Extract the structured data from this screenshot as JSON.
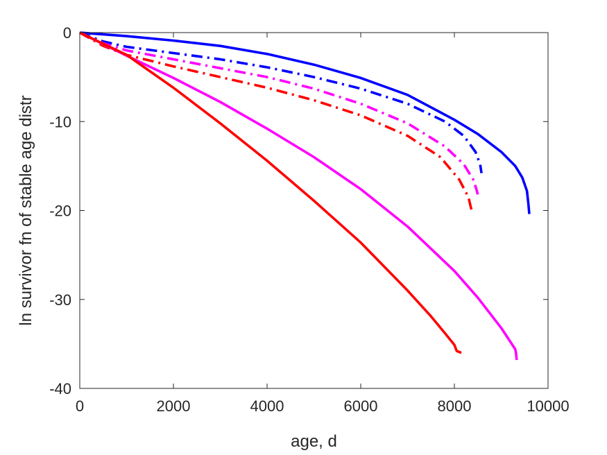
{
  "chart_data": {
    "type": "line",
    "title": "",
    "xlabel": "age, d",
    "ylabel": "ln survivor fn of stable age distr",
    "xlim": [
      0,
      10000
    ],
    "ylim": [
      -40,
      0
    ],
    "xticks": [
      0,
      2000,
      4000,
      6000,
      8000,
      10000
    ],
    "xtick_labels": [
      "0",
      "2000",
      "4000",
      "6000",
      "8000",
      "10000"
    ],
    "yticks": [
      0,
      -10,
      -20,
      -30,
      -40
    ],
    "ytick_labels": [
      "0",
      "-10",
      "-20",
      "-30",
      "-40"
    ],
    "grid": false,
    "legend": "none",
    "series": [
      {
        "color": "#0000ff",
        "style": "solid",
        "x": [
          0,
          1000,
          2000,
          3000,
          4000,
          5000,
          6000,
          7000,
          8000,
          8500,
          9000,
          9300,
          9450,
          9550,
          9580,
          9600
        ],
        "y": [
          0,
          -0.4,
          -0.9,
          -1.5,
          -2.4,
          -3.6,
          -5.1,
          -7.0,
          -9.8,
          -11.4,
          -13.4,
          -15.0,
          -16.3,
          -17.8,
          -19.2,
          -20.4
        ]
      },
      {
        "color": "#0000ff",
        "style": "dashdot",
        "x": [
          0,
          500,
          1000,
          2000,
          3000,
          4000,
          5000,
          6000,
          7000,
          7800,
          8200,
          8450,
          8550,
          8580
        ],
        "y": [
          0,
          -1.0,
          -1.6,
          -2.3,
          -3.0,
          -3.9,
          -5.0,
          -6.3,
          -8.0,
          -10.0,
          -11.6,
          -13.4,
          -14.8,
          -15.8
        ]
      },
      {
        "color": "#ff00ff",
        "style": "dashdot",
        "x": [
          0,
          500,
          1000,
          2000,
          3000,
          4000,
          5000,
          6000,
          7000,
          7800,
          8200,
          8400,
          8470,
          8500
        ],
        "y": [
          0,
          -1.2,
          -2.0,
          -3.0,
          -4.0,
          -5.0,
          -6.3,
          -8.0,
          -10.2,
          -12.8,
          -14.8,
          -16.5,
          -17.6,
          -18.2
        ]
      },
      {
        "color": "#ff0000",
        "style": "dashdot",
        "x": [
          0,
          500,
          1000,
          2000,
          3000,
          4000,
          5000,
          6000,
          7000,
          7700,
          8100,
          8300,
          8350,
          8370
        ],
        "y": [
          0,
          -1.5,
          -2.5,
          -3.8,
          -5.0,
          -6.2,
          -7.6,
          -9.3,
          -11.6,
          -14.0,
          -16.5,
          -18.5,
          -19.6,
          -20.0
        ]
      },
      {
        "color": "#ff00ff",
        "style": "solid",
        "x": [
          0,
          1000,
          2000,
          3000,
          4000,
          5000,
          6000,
          7000,
          8000,
          8500,
          9000,
          9200,
          9300,
          9320,
          9330
        ],
        "y": [
          0,
          -2.6,
          -5.1,
          -7.8,
          -10.8,
          -14.0,
          -17.6,
          -21.8,
          -26.8,
          -29.8,
          -33.2,
          -34.8,
          -35.6,
          -36.2,
          -36.8
        ]
      },
      {
        "color": "#ff0000",
        "style": "solid",
        "x": [
          0,
          1000,
          2000,
          3000,
          4000,
          5000,
          6000,
          7000,
          7500,
          7800,
          8000,
          8050,
          8150
        ],
        "y": [
          0,
          -2.5,
          -6.2,
          -10.2,
          -14.4,
          -18.9,
          -23.6,
          -29.0,
          -31.9,
          -33.8,
          -35.1,
          -35.8,
          -36.0
        ]
      }
    ]
  }
}
